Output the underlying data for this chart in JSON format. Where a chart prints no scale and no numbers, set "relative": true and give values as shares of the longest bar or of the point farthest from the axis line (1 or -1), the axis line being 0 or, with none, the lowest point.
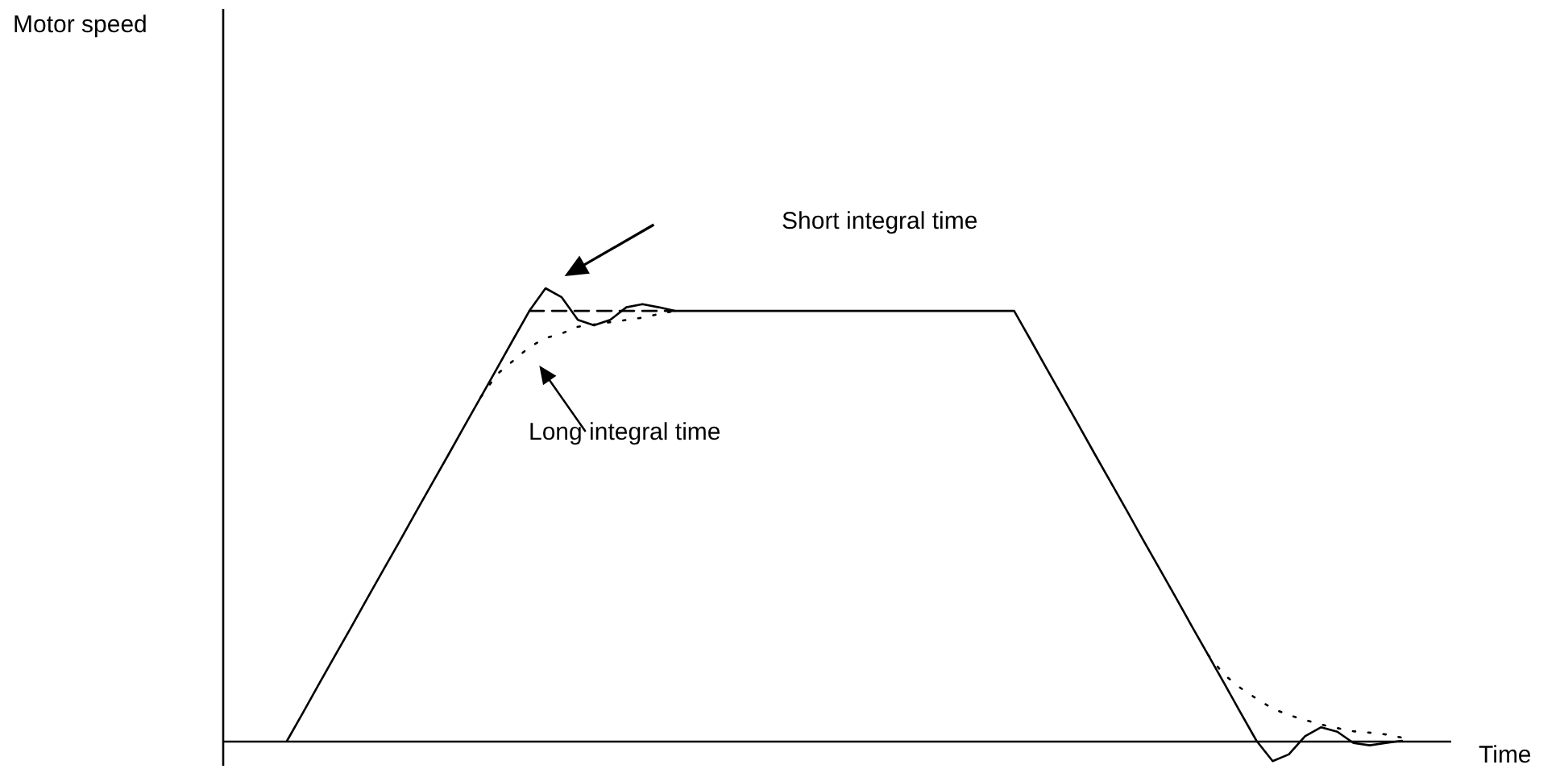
{
  "chart_data": {
    "type": "line",
    "relative": true,
    "xlabel": "Time",
    "tick_labels": false,
    "categories": [
      null,
      null,
      null,
      null,
      null,
      null,
      null,
      null,
      null,
      null,
      null,
      null,
      null,
      null,
      null,
      null,
      null,
      null,
      null,
      null,
      null,
      null,
      null,
      null,
      null,
      null,
      null,
      null,
      null,
      null,
      null,
      null,
      null,
      null,
      null,
      null,
      null,
      null,
      null,
      null,
      null,
      null,
      null,
      null,
      null,
      null,
      null,
      null,
      null,
      null,
      null,
      null,
      null,
      null,
      null,
      null,
      null,
      null,
      null,
      null,
      null,
      null,
      null,
      null,
      null,
      null,
      null,
      null,
      null,
      null,
      null,
      null,
      null,
      null,
      null,
      null,
      null
    ],
    "series": [
      {
        "color": "#000000",
        "line_style": "solid",
        "values": [
          null,
          null,
          null,
          null,
          0,
          0.063,
          0.127,
          0.19,
          0.253,
          0.317,
          0.38,
          0.443,
          0.507,
          0.57,
          0.633,
          0.697,
          0.76,
          0.823,
          0.887,
          0.95,
          1,
          0.98,
          0.93,
          0.918,
          0.93,
          0.958,
          0.965,
          0.958,
          0.95,
          0.95,
          0.95,
          0.95,
          0.95,
          0.95,
          0.95,
          0.95,
          0.95,
          0.95,
          0.95,
          0.95,
          0.95,
          0.95,
          0.95,
          0.95,
          0.95,
          0.95,
          0.95,
          0.95,
          0.95,
          0.95,
          0.887,
          0.823,
          0.76,
          0.697,
          0.633,
          0.57,
          0.507,
          0.443,
          0.38,
          0.317,
          0.253,
          0.19,
          0.127,
          0.063,
          0,
          -0.045,
          -0.03,
          0.01,
          0.03,
          0.02,
          -0.005,
          -0.01,
          -0.005,
          0,
          null,
          null,
          null
        ]
      },
      {
        "color": "#000000",
        "line_style": "dotted",
        "values": [
          null,
          null,
          null,
          null,
          null,
          null,
          null,
          null,
          null,
          null,
          null,
          null,
          null,
          null,
          null,
          null,
          0.76,
          0.81,
          0.84,
          0.87,
          0.89,
          0.9,
          0.915,
          0.92,
          0.925,
          0.93,
          0.935,
          0.943,
          0.95,
          null,
          null,
          null,
          null,
          null,
          null,
          null,
          null,
          null,
          null,
          null,
          null,
          null,
          null,
          null,
          null,
          null,
          null,
          null,
          null,
          null,
          null,
          null,
          null,
          null,
          null,
          null,
          null,
          null,
          null,
          null,
          null,
          0.19,
          0.146,
          0.117,
          0.093,
          0.071,
          0.057,
          0.046,
          0.036,
          0.028,
          0.021,
          0.018,
          0.014,
          0.007,
          null,
          null,
          null
        ]
      },
      {
        "color": "#000000",
        "line_style": "dashed",
        "values": [
          null,
          null,
          null,
          null,
          null,
          null,
          null,
          null,
          null,
          null,
          null,
          null,
          null,
          null,
          null,
          null,
          null,
          null,
          null,
          0.95,
          0.95,
          0.95,
          0.95,
          0.95,
          0.95,
          0.95,
          0.95,
          0.95,
          0.95,
          null,
          null,
          null,
          null,
          null,
          null,
          null,
          null,
          null,
          null,
          null,
          null,
          null,
          null,
          null,
          null,
          null,
          null,
          null,
          null,
          null,
          null,
          null,
          null,
          null,
          null,
          null,
          null,
          null,
          null,
          null,
          null,
          null,
          null,
          null,
          null,
          null,
          null,
          null,
          null,
          null,
          null,
          null,
          null,
          null,
          null,
          null,
          null
        ]
      }
    ],
    "annotations": [
      "Motor speed",
      "Short integral time",
      "Long integral time"
    ]
  }
}
